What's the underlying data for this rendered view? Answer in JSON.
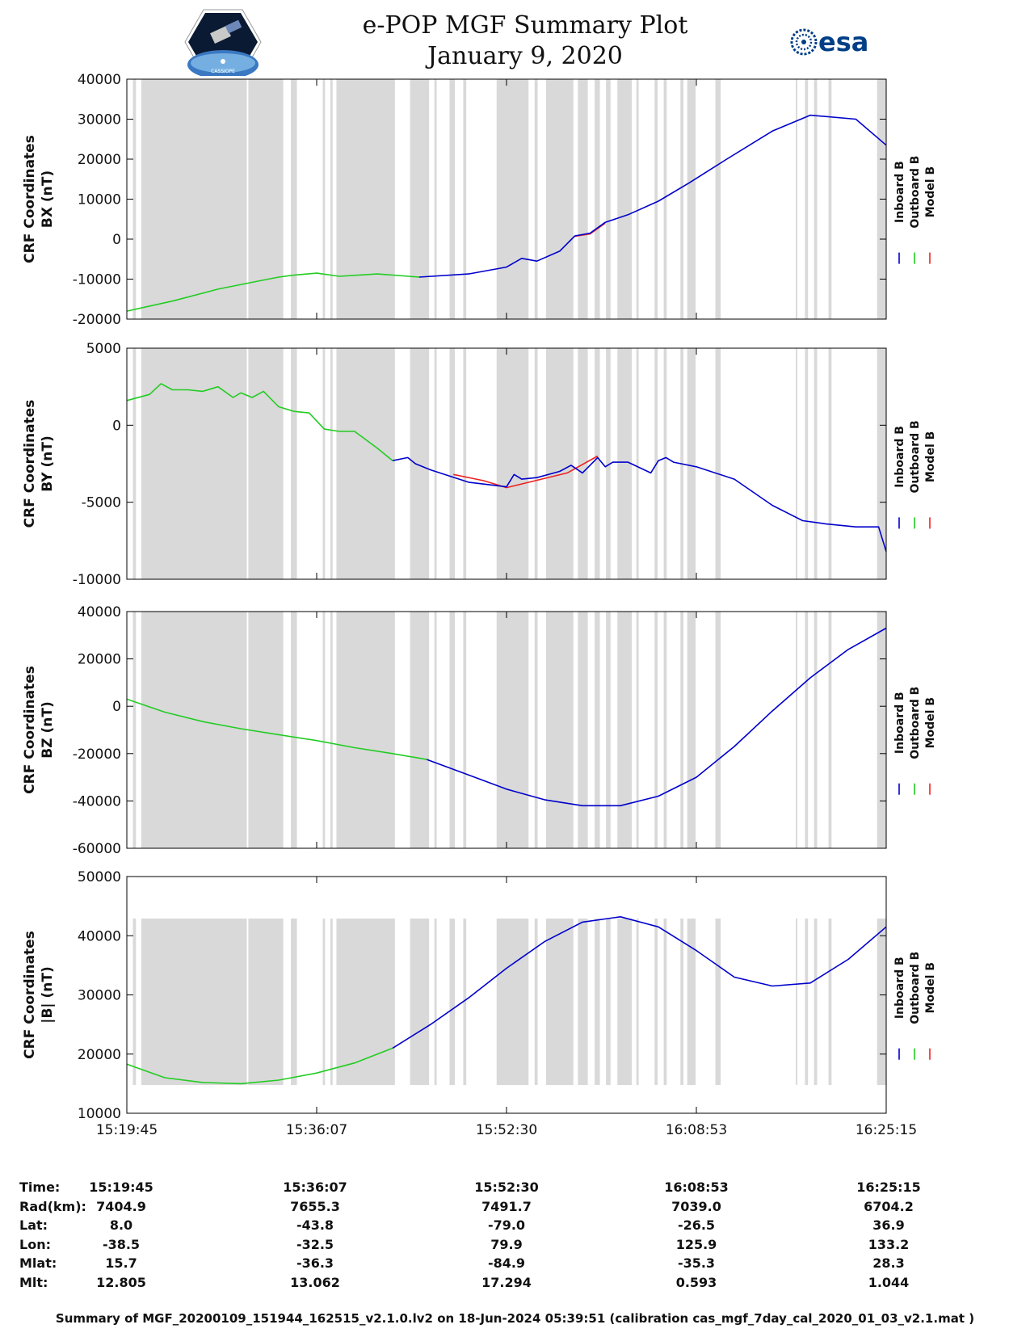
{
  "header": {
    "title_line1": "e-POP MGF Summary Plot",
    "title_line2": "January 9, 2020",
    "esa_logo_text": "esa",
    "epop_logo_text": "CASSIOPE"
  },
  "colors": {
    "inboard": "#0000cc",
    "outboard": "#22cc22",
    "model": "#ee2222",
    "gap_shading": "#d9d9d9"
  },
  "legend": {
    "labels": [
      "Inboard B",
      "Outboard B",
      "Model B"
    ]
  },
  "chart_data": [
    {
      "type": "line",
      "id": "bx",
      "ylabel_line1": "CRF Coordinates",
      "ylabel_line2": "BX (nT)",
      "ylim": [
        -20000,
        40000
      ],
      "yticks": [
        40000,
        30000,
        20000,
        10000,
        0,
        -10000,
        -20000
      ],
      "ytick_labels": [
        "40000",
        "30000",
        "20000",
        "10000",
        "0",
        "-10000",
        "-20000"
      ],
      "series": [
        {
          "name": "Outboard B",
          "x": [
            0,
            6,
            12,
            17,
            20,
            22,
            25,
            28,
            33,
            38.5
          ],
          "values": [
            -18000,
            -15500,
            -12500,
            -10600,
            -9500,
            -9000,
            -8500,
            -9300,
            -8700,
            -9500
          ]
        },
        {
          "name": "Inboard B",
          "x": [
            38.5,
            45,
            50,
            52,
            54,
            57,
            59,
            61,
            63,
            66,
            70,
            74,
            79,
            85,
            90,
            96,
            100
          ],
          "values": [
            -9500,
            -8700,
            -7000,
            -4800,
            -5500,
            -3000,
            800,
            1500,
            4200,
            6100,
            9500,
            14000,
            20000,
            27000,
            31000,
            30000,
            23500
          ]
        },
        {
          "name": "Model B",
          "x": [
            59,
            61,
            63
          ],
          "values": [
            700,
            1300,
            4000
          ]
        }
      ]
    },
    {
      "type": "line",
      "id": "by",
      "ylabel_line1": "CRF Coordinates",
      "ylabel_line2": "BY (nT)",
      "ylim": [
        -10000,
        5000
      ],
      "yticks": [
        5000,
        0,
        -5000,
        -10000
      ],
      "ytick_labels": [
        "5000",
        "0",
        "-5000",
        "-10000"
      ],
      "series": [
        {
          "name": "Outboard B",
          "x": [
            0,
            3,
            4.5,
            6,
            8,
            10,
            12,
            14,
            15,
            16.5,
            18,
            20,
            22,
            24,
            26,
            28,
            30,
            33,
            35
          ],
          "values": [
            1600,
            2000,
            2700,
            2300,
            2300,
            2200,
            2500,
            1800,
            2100,
            1800,
            2200,
            1200,
            900,
            800,
            -250,
            -400,
            -400,
            -1500,
            -2300
          ]
        },
        {
          "name": "Inboard B",
          "x": [
            35,
            37,
            38,
            40,
            45,
            50,
            51,
            52,
            54,
            57,
            58.5,
            60,
            62,
            63,
            64,
            66,
            69,
            70,
            71,
            72,
            75,
            80,
            85,
            89,
            92,
            94,
            96,
            99,
            100
          ],
          "values": [
            -2300,
            -2100,
            -2500,
            -2900,
            -3700,
            -4000,
            -3200,
            -3500,
            -3400,
            -3000,
            -2600,
            -3100,
            -2100,
            -2700,
            -2400,
            -2400,
            -3100,
            -2300,
            -2100,
            -2400,
            -2700,
            -3500,
            -5200,
            -6200,
            -6400,
            -6500,
            -6600,
            -6600,
            -8200
          ]
        },
        {
          "name": "Model B",
          "x": [
            43,
            47,
            50,
            58,
            62
          ],
          "values": [
            -3200,
            -3600,
            -4050,
            -3100,
            -2000
          ]
        }
      ]
    },
    {
      "type": "line",
      "id": "bz",
      "ylabel_line1": "CRF Coordinates",
      "ylabel_line2": "BZ (nT)",
      "ylim": [
        -60000,
        40000
      ],
      "yticks": [
        40000,
        20000,
        0,
        -20000,
        -40000,
        -60000
      ],
      "ytick_labels": [
        "40000",
        "20000",
        "0",
        "-20000",
        "-40000",
        "-60000"
      ],
      "series": [
        {
          "name": "Outboard B",
          "x": [
            0,
            5,
            10,
            15,
            20,
            25,
            30,
            35,
            39.5
          ],
          "values": [
            3000,
            -2500,
            -6500,
            -9500,
            -12000,
            -14500,
            -17500,
            -20000,
            -22500
          ]
        },
        {
          "name": "Inboard B",
          "x": [
            39.5,
            45,
            50,
            55,
            60,
            65,
            70,
            75,
            80,
            85,
            90,
            95,
            100
          ],
          "values": [
            -22500,
            -29000,
            -35000,
            -39500,
            -42000,
            -42000,
            -38000,
            -30000,
            -17000,
            -2000,
            12000,
            24000,
            33000
          ]
        }
      ]
    },
    {
      "type": "line",
      "id": "bmag",
      "ylabel_line1": "CRF Coordinates",
      "ylabel_line2": "|B| (nT)",
      "ylim": [
        10000,
        50000
      ],
      "yticks": [
        50000,
        40000,
        30000,
        20000,
        10000
      ],
      "ytick_labels": [
        "50000",
        "40000",
        "30000",
        "20000",
        "10000"
      ],
      "series": [
        {
          "name": "Outboard B",
          "x": [
            0,
            5,
            10,
            15,
            20,
            25,
            30,
            35
          ],
          "values": [
            18300,
            16000,
            15200,
            15000,
            15600,
            16800,
            18500,
            21000
          ]
        },
        {
          "name": "Inboard B",
          "x": [
            35,
            40,
            45,
            50,
            55,
            60,
            65,
            70,
            75,
            80,
            85,
            90,
            95,
            100
          ],
          "values": [
            21000,
            25000,
            29500,
            34500,
            39000,
            42300,
            43200,
            41500,
            37500,
            33000,
            31500,
            32000,
            36000,
            41500
          ]
        }
      ]
    }
  ],
  "gap_bands": [
    [
      0.8,
      1.2
    ],
    [
      1.9,
      15.8
    ],
    [
      16,
      20.6
    ],
    [
      21.6,
      22.4
    ],
    [
      25.8,
      26.1
    ],
    [
      26.8,
      27.1
    ],
    [
      27.6,
      35.3
    ],
    [
      37.3,
      39.8
    ],
    [
      40.5,
      40.8
    ],
    [
      42.5,
      43.2
    ],
    [
      44.3,
      44.7
    ],
    [
      48.7,
      52.9
    ],
    [
      53.7,
      54.1
    ],
    [
      55.2,
      58.8
    ],
    [
      59.4,
      60.7
    ],
    [
      61.6,
      62.3
    ],
    [
      63.1,
      63.7
    ],
    [
      64.6,
      66.5
    ],
    [
      67.1,
      67.4
    ],
    [
      69.5,
      69.9
    ],
    [
      70.7,
      71.1
    ],
    [
      72.9,
      73.3
    ],
    [
      73.8,
      74.9
    ],
    [
      77.5,
      78.2
    ],
    [
      88.1,
      88.3
    ],
    [
      89.3,
      89.7
    ],
    [
      90.5,
      90.9
    ],
    [
      92.4,
      92.8
    ],
    [
      98.8,
      100
    ]
  ],
  "time_axis": {
    "ticks": [
      0,
      25,
      50,
      75,
      100
    ],
    "tick_labels": [
      "15:19:45",
      "15:36:07",
      "15:52:30",
      "16:08:53",
      "16:25:15"
    ]
  },
  "orbit_info": {
    "rows": [
      {
        "label": "Time:",
        "values": [
          "15:19:45",
          "15:36:07",
          "15:52:30",
          "16:08:53",
          "16:25:15"
        ]
      },
      {
        "label": "Rad(km):",
        "values": [
          "7404.9",
          "7655.3",
          "7491.7",
          "7039.0",
          "6704.2"
        ]
      },
      {
        "label": "Lat:",
        "values": [
          "8.0",
          "-43.8",
          "-79.0",
          "-26.5",
          "36.9"
        ]
      },
      {
        "label": "Lon:",
        "values": [
          "-38.5",
          "-32.5",
          "79.9",
          "125.9",
          "133.2"
        ]
      },
      {
        "label": "Mlat:",
        "values": [
          "15.7",
          "-36.3",
          "-84.9",
          "-35.3",
          "28.3"
        ]
      },
      {
        "label": "Mlt:",
        "values": [
          "12.805",
          "13.062",
          "17.294",
          "0.593",
          "1.044"
        ]
      }
    ]
  },
  "caption": "Summary of MGF_20200109_151944_162515_v2.1.0.lv2 on 18-Jun-2024 05:39:51 (calibration cas_mgf_7day_cal_2020_01_03_v2.1.mat )"
}
